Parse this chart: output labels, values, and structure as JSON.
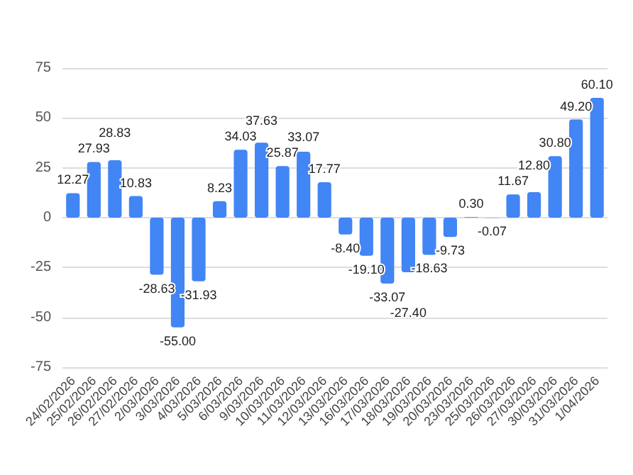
{
  "chart_data": {
    "type": "bar",
    "categories": [
      "24/02/2026",
      "25/02/2026",
      "26/02/2026",
      "27/02/2026",
      "2/03/2026",
      "3/03/2026",
      "4/03/2026",
      "5/03/2026",
      "6/03/2026",
      "9/03/2026",
      "10/03/2026",
      "11/03/2026",
      "12/03/2026",
      "13/03/2026",
      "16/03/2026",
      "17/03/2026",
      "18/03/2026",
      "19/03/2026",
      "20/03/2026",
      "23/03/2026",
      "25/03/2026",
      "26/03/2026",
      "27/03/2026",
      "30/03/2026",
      "31/03/2026",
      "1/04/2026"
    ],
    "values": [
      12.27,
      27.93,
      28.83,
      10.83,
      -28.63,
      -55.0,
      -31.93,
      8.23,
      34.03,
      37.63,
      25.87,
      33.07,
      17.77,
      -8.4,
      -19.1,
      -33.07,
      -27.4,
      -18.63,
      -9.73,
      0.3,
      -0.07,
      11.67,
      12.8,
      30.8,
      49.2,
      60.1
    ],
    "value_labels": [
      "12.27",
      "27.93",
      "28.83",
      "10.83",
      "-28.63",
      "-55.00",
      "-31.93",
      "8.23",
      "34.03",
      "37.63",
      "25.87",
      "33.07",
      "17.77",
      "-8.40",
      "-19.10",
      "-33.07",
      "-27.40",
      "-18.63",
      "-9.73",
      "0.30",
      "-0.07",
      "11.67",
      "12.80",
      "30.80",
      "49.20",
      "60.10"
    ],
    "color": "#4285f4",
    "ylim": [
      -75,
      75
    ],
    "yticks": [
      -75,
      -50,
      -25,
      0,
      25,
      50,
      75
    ],
    "grid": "y"
  }
}
